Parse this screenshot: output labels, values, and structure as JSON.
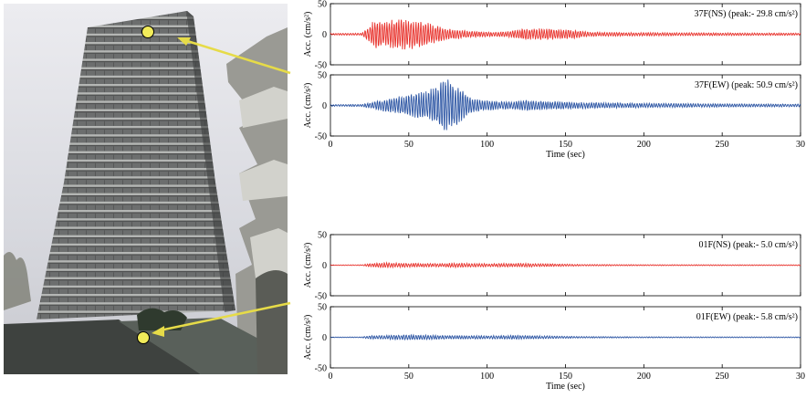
{
  "chart_data": [
    {
      "type": "line",
      "label": "37F(NS) (peak:- 29.8 cm/s²)",
      "ylabel": "Acc. (cm/s²)",
      "xlabel": "",
      "xlim": [
        0,
        300
      ],
      "ylim": [
        -50,
        50
      ],
      "yticks": [
        "50",
        "0",
        "-50"
      ],
      "xticks": [],
      "color": "#e8332d",
      "peak": 29.8,
      "envelope": [
        [
          0,
          1.5
        ],
        [
          20,
          2
        ],
        [
          24,
          12
        ],
        [
          28,
          26
        ],
        [
          35,
          24
        ],
        [
          45,
          28
        ],
        [
          55,
          26
        ],
        [
          65,
          18
        ],
        [
          75,
          10
        ],
        [
          85,
          7
        ],
        [
          95,
          5
        ],
        [
          105,
          4
        ],
        [
          115,
          6
        ],
        [
          125,
          11
        ],
        [
          135,
          10
        ],
        [
          145,
          9
        ],
        [
          155,
          8
        ],
        [
          165,
          4
        ],
        [
          200,
          3
        ],
        [
          250,
          2.5
        ],
        [
          300,
          2
        ]
      ]
    },
    {
      "type": "line",
      "label": "37F(EW) (peak: 50.9 cm/s²)",
      "ylabel": "Acc. (cm/s²)",
      "xlabel": "Time (sec)",
      "xlim": [
        0,
        300
      ],
      "ylim": [
        -50,
        50
      ],
      "yticks": [
        "50",
        "0",
        "-50"
      ],
      "xticks": [
        "0",
        "50",
        "100",
        "150",
        "200",
        "250",
        "30"
      ],
      "color": "#2d56a4",
      "peak": 50.9,
      "envelope": [
        [
          0,
          1.5
        ],
        [
          20,
          2
        ],
        [
          30,
          8
        ],
        [
          40,
          14
        ],
        [
          50,
          20
        ],
        [
          60,
          26
        ],
        [
          68,
          36
        ],
        [
          73,
          50
        ],
        [
          80,
          38
        ],
        [
          88,
          18
        ],
        [
          95,
          10
        ],
        [
          105,
          8
        ],
        [
          115,
          7
        ],
        [
          125,
          10
        ],
        [
          135,
          8
        ],
        [
          145,
          7
        ],
        [
          155,
          6
        ],
        [
          175,
          5
        ],
        [
          200,
          4
        ],
        [
          250,
          3
        ],
        [
          300,
          2.5
        ]
      ]
    },
    {
      "type": "line",
      "label": "01F(NS) (peak:- 5.0 cm/s²)",
      "ylabel": "Acc. (cm/s²)",
      "xlabel": "",
      "xlim": [
        0,
        300
      ],
      "ylim": [
        -50,
        50
      ],
      "yticks": [
        "50",
        "0",
        "-50"
      ],
      "xticks": [],
      "color": "#e8332d",
      "peak": 5.0,
      "envelope": [
        [
          0,
          0.5
        ],
        [
          20,
          0.8
        ],
        [
          25,
          3
        ],
        [
          35,
          4.5
        ],
        [
          50,
          3.5
        ],
        [
          70,
          3
        ],
        [
          80,
          4
        ],
        [
          100,
          3
        ],
        [
          120,
          3.5
        ],
        [
          140,
          2.5
        ],
        [
          160,
          1.5
        ],
        [
          200,
          1
        ],
        [
          300,
          0.8
        ]
      ]
    },
    {
      "type": "line",
      "label": "01F(EW) (peak:- 5.8 cm/s²)",
      "ylabel": "Acc. (cm/s²)",
      "xlabel": "Time (sec)",
      "xlim": [
        0,
        300
      ],
      "ylim": [
        -50,
        50
      ],
      "yticks": [
        "50",
        "0",
        "-50"
      ],
      "xticks": [
        "0",
        "50",
        "100",
        "150",
        "200",
        "250",
        "30"
      ],
      "color": "#2d56a4",
      "peak": 5.8,
      "envelope": [
        [
          0,
          0.5
        ],
        [
          20,
          0.8
        ],
        [
          25,
          3
        ],
        [
          40,
          4
        ],
        [
          55,
          4.5
        ],
        [
          70,
          3.5
        ],
        [
          85,
          3
        ],
        [
          100,
          3
        ],
        [
          120,
          3.5
        ],
        [
          140,
          2.5
        ],
        [
          160,
          1.5
        ],
        [
          200,
          1
        ],
        [
          300,
          0.8
        ]
      ]
    }
  ],
  "photo": {
    "sensor_markers": 2,
    "marker_color": "#f2ec5a",
    "arrow_color": "#e6db48",
    "sky_color": "#dfe0e6",
    "building_color": "#7a7a78"
  }
}
